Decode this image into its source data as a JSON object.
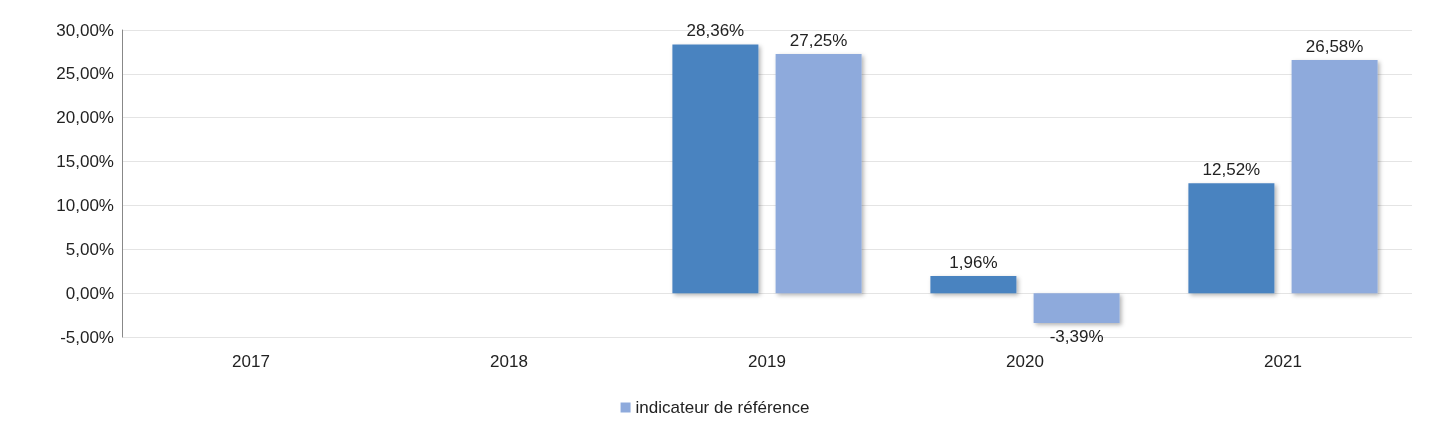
{
  "chart_data": {
    "type": "bar",
    "categories": [
      "2017",
      "2018",
      "2019",
      "2020",
      "2021"
    ],
    "series": [
      {
        "color": "#4a83c0",
        "values": [
          null,
          null,
          28.36,
          1.96,
          12.52
        ],
        "value_labels": [
          null,
          null,
          "28,36%",
          "1,96%",
          "12,52%"
        ]
      },
      {
        "name": "indicateur de référence",
        "color": "#8eaadc",
        "values": [
          null,
          null,
          27.25,
          -3.39,
          26.58
        ],
        "value_labels": [
          null,
          null,
          "27,25%",
          "-3,39%",
          "26,58%"
        ]
      }
    ],
    "ylim": [
      -5,
      30
    ],
    "yticks": [
      {
        "value": -5,
        "label": "-5,00%"
      },
      {
        "value": 0,
        "label": "0,00%"
      },
      {
        "value": 5,
        "label": "5,00%"
      },
      {
        "value": 10,
        "label": "10,00%"
      },
      {
        "value": 15,
        "label": "15,00%"
      },
      {
        "value": 20,
        "label": "20,00%"
      },
      {
        "value": 25,
        "label": "25,00%"
      },
      {
        "value": 30,
        "label": "30,00%"
      }
    ],
    "grid": "y",
    "legend": "bottom"
  }
}
